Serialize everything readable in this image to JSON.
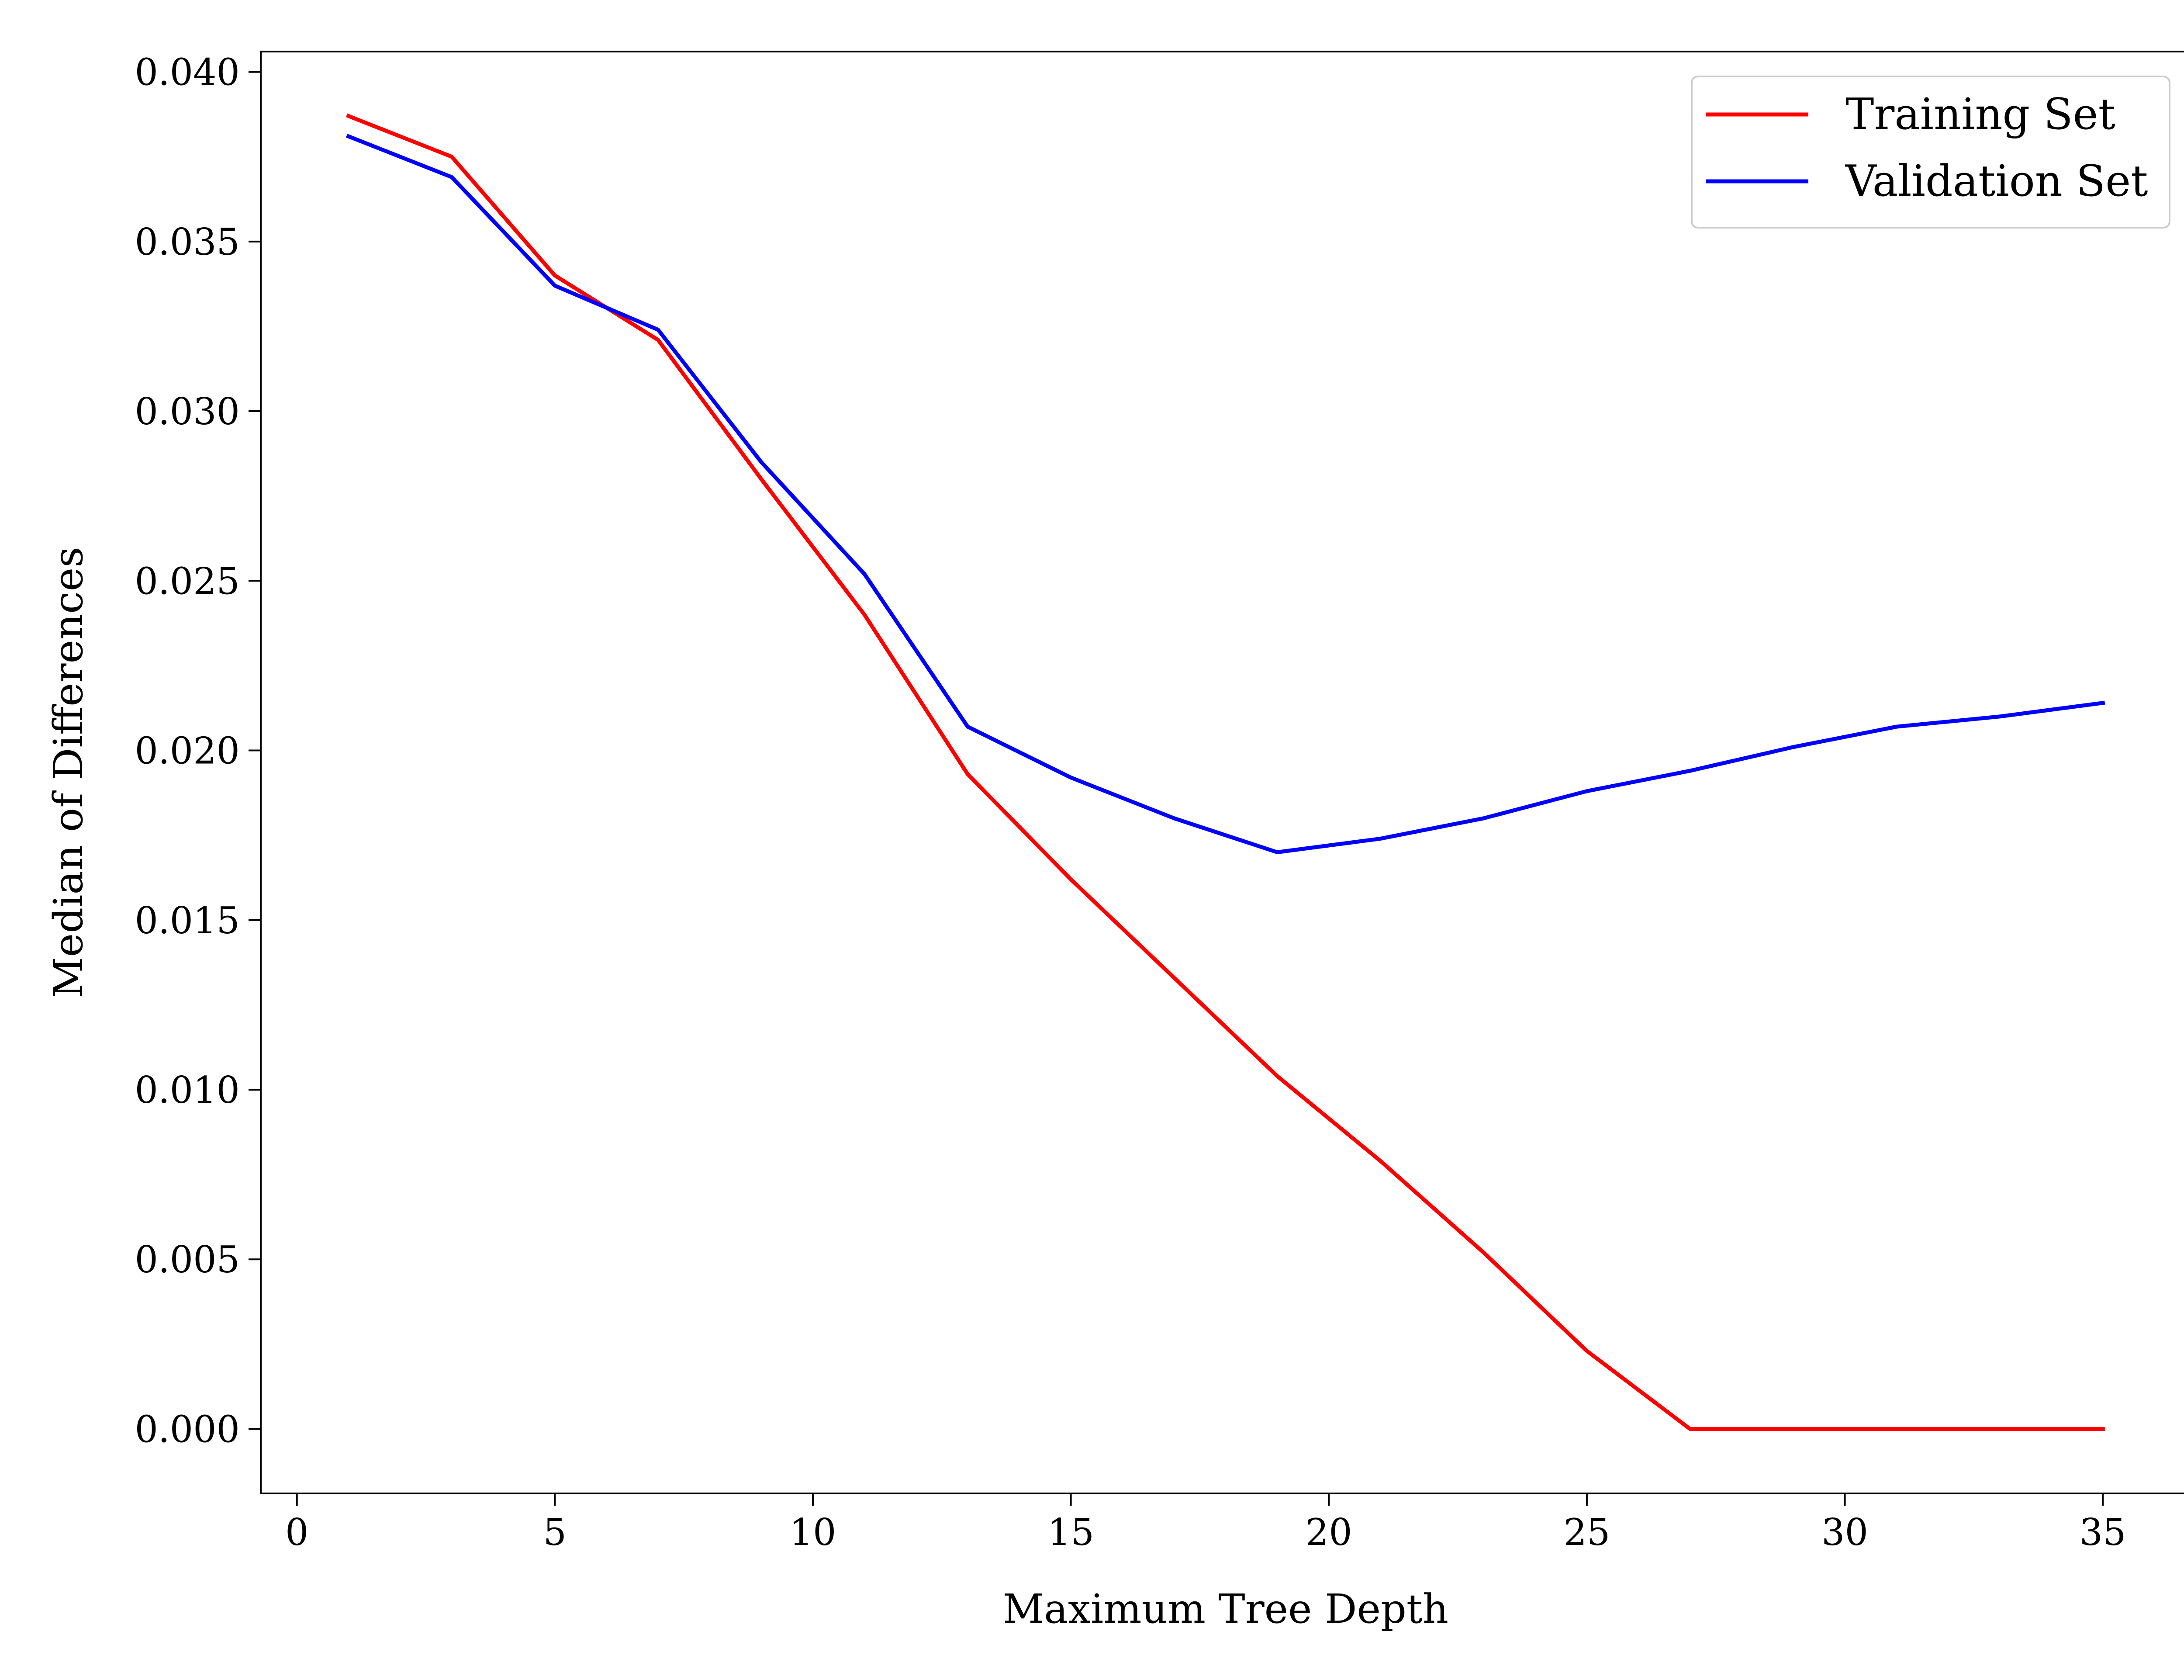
{
  "chart_data": {
    "type": "line",
    "xlabel": "Maximum Tree Depth",
    "ylabel": "Median of Differences",
    "xlim": [
      -0.7,
      36.7
    ],
    "ylim": [
      -0.0019,
      0.0406
    ],
    "x_ticks": [
      0,
      5,
      10,
      15,
      20,
      25,
      30,
      35
    ],
    "x_tick_labels": [
      "0",
      "5",
      "10",
      "15",
      "20",
      "25",
      "30",
      "35"
    ],
    "y_ticks": [
      0.0,
      0.005,
      0.01,
      0.015,
      0.02,
      0.025,
      0.03,
      0.035,
      0.04
    ],
    "y_tick_labels": [
      "0.000",
      "0.005",
      "0.010",
      "0.015",
      "0.020",
      "0.025",
      "0.030",
      "0.035",
      "0.040"
    ],
    "grid": false,
    "legend_position": "top-right",
    "x": [
      1,
      3,
      5,
      7,
      9,
      11,
      13,
      15,
      17,
      19,
      21,
      23,
      25,
      27,
      29,
      31,
      33,
      35
    ],
    "series": [
      {
        "name": "Training Set",
        "color": "#ff0000",
        "values": [
          0.0387,
          0.0375,
          0.034,
          0.0321,
          0.028,
          0.024,
          0.0193,
          0.0162,
          0.0133,
          0.0104,
          0.0079,
          0.0052,
          0.0023,
          0.0,
          0.0,
          0.0,
          0.0,
          0.0
        ]
      },
      {
        "name": "Validation Set",
        "color": "#0000ff",
        "values": [
          0.0381,
          0.0369,
          0.0337,
          0.0324,
          0.0285,
          0.0252,
          0.0207,
          0.0192,
          0.018,
          0.017,
          0.0174,
          0.018,
          0.0188,
          0.0194,
          0.0201,
          0.0207,
          0.021,
          0.0214
        ]
      }
    ]
  }
}
